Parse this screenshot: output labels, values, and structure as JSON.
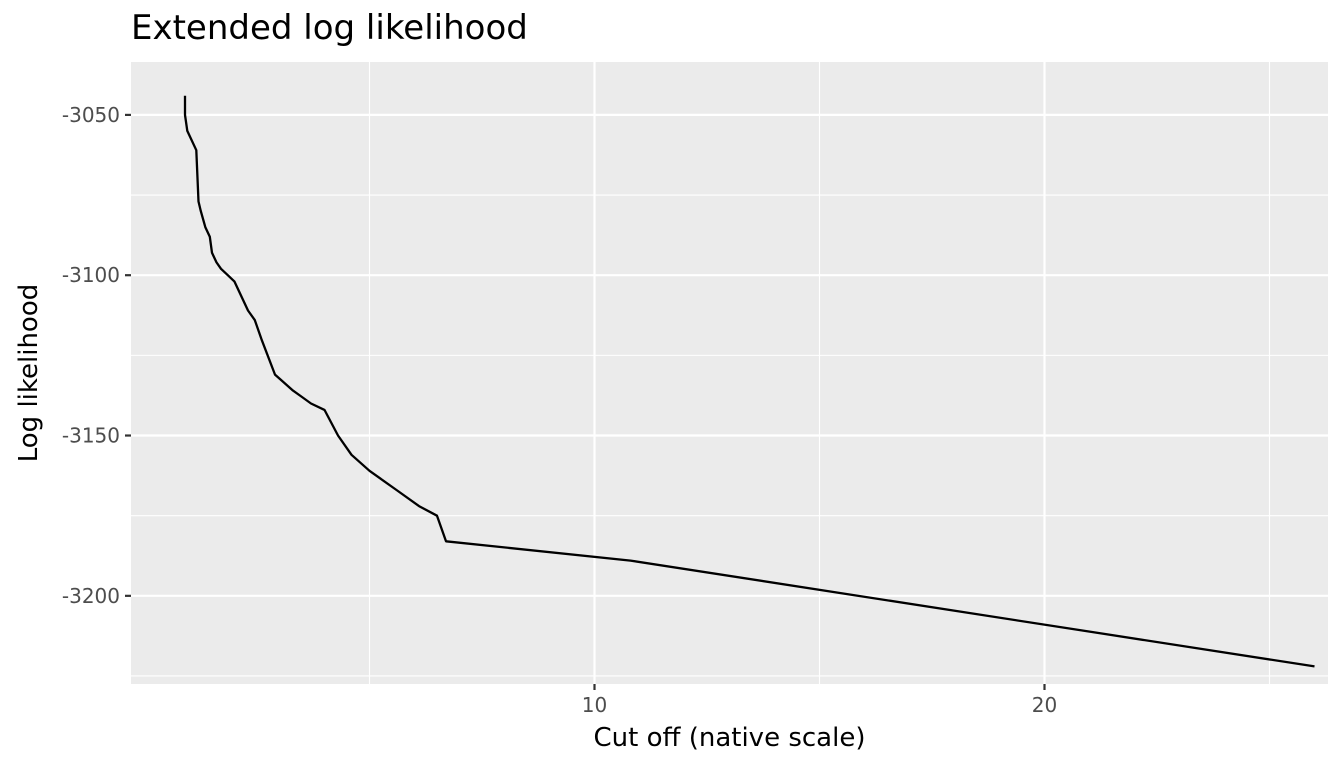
{
  "chart_data": {
    "type": "line",
    "title": "Extended log likelihood",
    "xlabel": "Cut off (native scale)",
    "ylabel": "Log likelihood",
    "xlim": [
      -0.3,
      26.3
    ],
    "ylim": [
      -3227.5,
      -3033.5
    ],
    "x_ticks": [
      10,
      20
    ],
    "x_tick_labels": [
      "10",
      "20"
    ],
    "x_minor_ticks": [
      5,
      15,
      25
    ],
    "y_ticks": [
      -3050,
      -3100,
      -3150,
      -3200
    ],
    "y_tick_labels": [
      "-3050",
      "-3100",
      "-3150",
      "-3200"
    ],
    "y_minor_ticks": [
      -3075,
      -3125,
      -3175,
      -3225
    ],
    "grid": true,
    "colors": {
      "panel_background": "#ebebeb",
      "grid": "#ffffff",
      "line": "#000000"
    },
    "series": [
      {
        "x": [
          0.9,
          0.9,
          0.95,
          1.15,
          1.2,
          1.25,
          1.35,
          1.45,
          1.5,
          1.6,
          1.7,
          1.85,
          2.0,
          2.2,
          2.3,
          2.45,
          2.6,
          2.9,
          3.3,
          3.5,
          3.7,
          4.0,
          4.3,
          4.6,
          5.0,
          5.3,
          5.6,
          6.1,
          6.5,
          6.7,
          10.8,
          26.0
        ],
        "y": [
          -3044,
          -3050,
          -3055,
          -3061,
          -3077,
          -3080,
          -3085,
          -3088,
          -3093,
          -3096,
          -3098,
          -3100,
          -3102,
          -3108,
          -3111,
          -3114,
          -3120,
          -3131,
          -3136,
          -3138,
          -3140,
          -3142,
          -3150,
          -3156,
          -3161,
          -3164,
          -3167,
          -3172,
          -3175,
          -3183,
          -3189,
          -3222
        ]
      }
    ]
  }
}
